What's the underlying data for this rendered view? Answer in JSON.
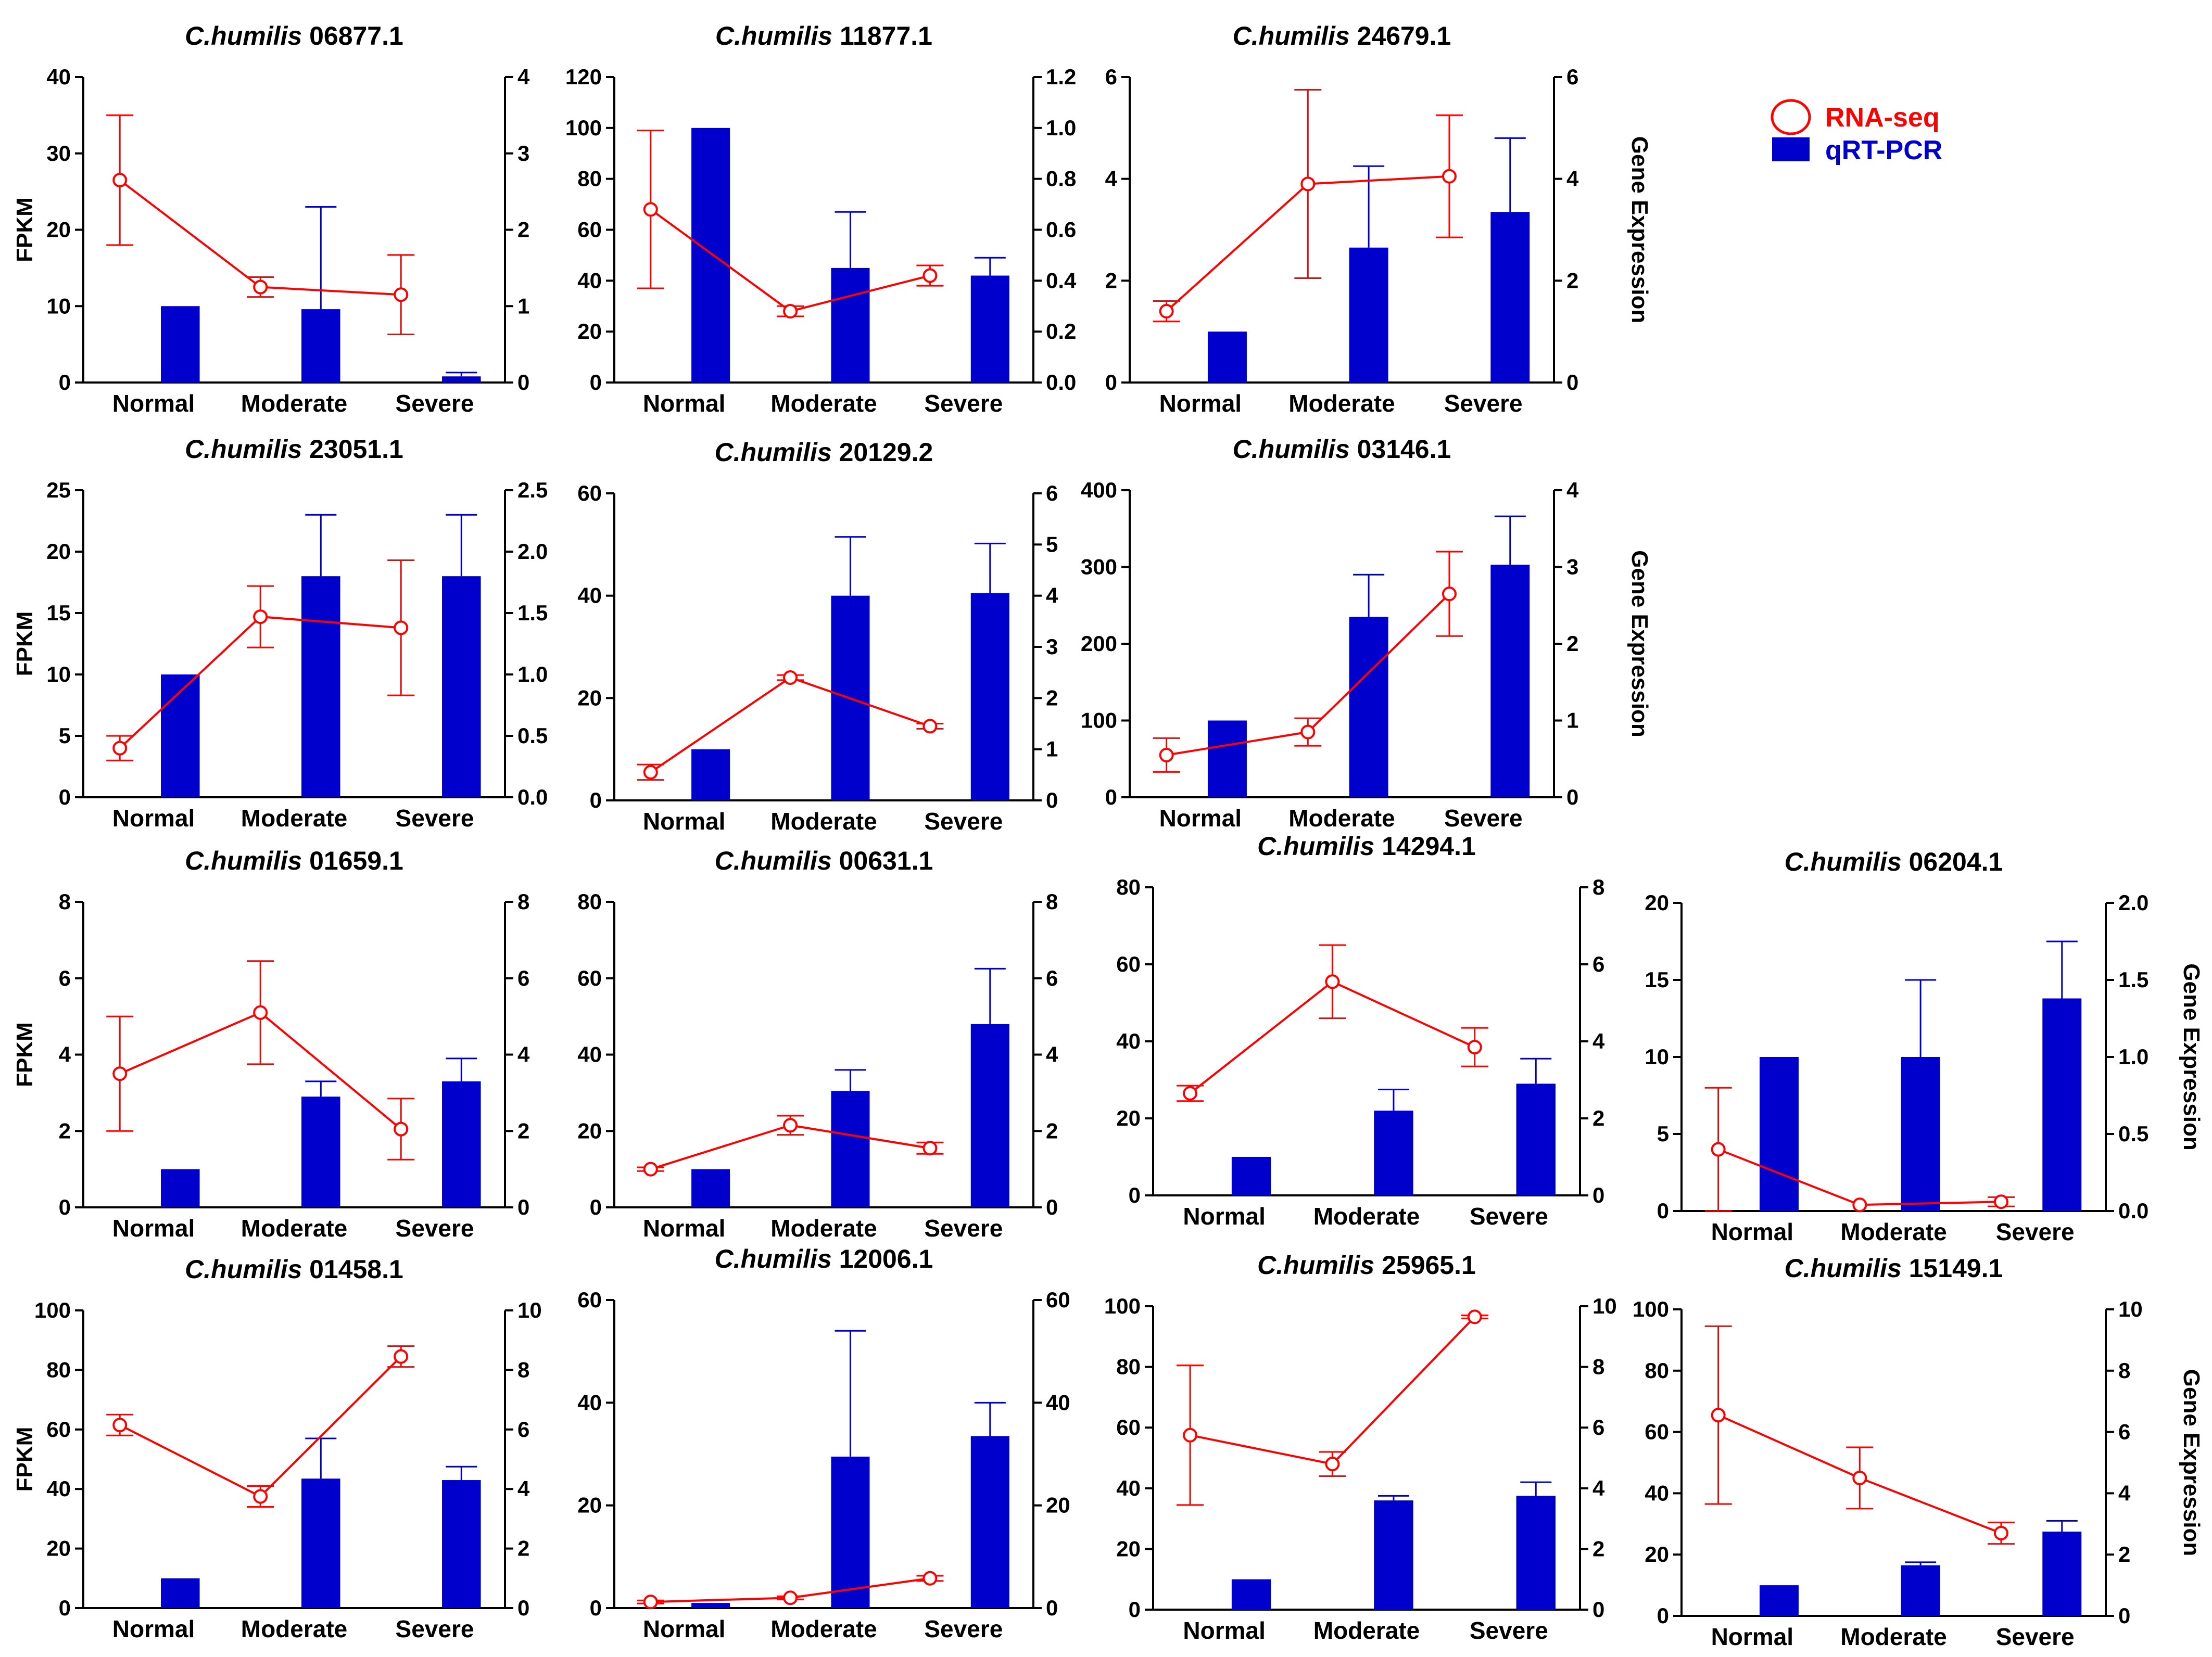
{
  "legend": {
    "rna_label": "RNA-seq",
    "qpcr_label": "qRT-PCR",
    "rna_color": "#ff0000",
    "qpcr_color": "#0000cc"
  },
  "axis_labels": {
    "left": "FPKM",
    "right": "Gene Expression"
  },
  "chart_data": [
    {
      "type": "bar",
      "title_prefix": "C.humilis",
      "title_id": "06877.1",
      "categories": [
        "Normal",
        "Moderate",
        "Severe"
      ],
      "series": [
        {
          "name": "RNA-seq",
          "kind": "line",
          "axis": "left",
          "values": [
            26.5,
            12.5,
            11.5
          ],
          "errors": [
            8.5,
            1.3,
            5.2
          ]
        },
        {
          "name": "qRT-PCR",
          "kind": "bar",
          "axis": "right",
          "values": [
            1.0,
            0.96,
            0.08
          ],
          "errors": [
            0,
            1.34,
            0.05
          ]
        }
      ],
      "ylim_left": [
        0,
        40
      ],
      "yticks_left": [
        "0",
        "10",
        "20",
        "30",
        "40"
      ],
      "ylim_right": [
        0,
        4
      ],
      "yticks_right": [
        "0",
        "1",
        "2",
        "3",
        "4"
      ]
    },
    {
      "type": "bar",
      "title_prefix": "C.humilis",
      "title_id": "11877.1",
      "categories": [
        "Normal",
        "Moderate",
        "Severe"
      ],
      "series": [
        {
          "name": "RNA-seq",
          "kind": "line",
          "axis": "left",
          "values": [
            68,
            28,
            42
          ],
          "errors": [
            31,
            2,
            4
          ]
        },
        {
          "name": "qRT-PCR",
          "kind": "bar",
          "axis": "right",
          "values": [
            1.0,
            0.45,
            0.42
          ],
          "errors": [
            0,
            0.22,
            0.07
          ]
        }
      ],
      "ylim_left": [
        0,
        120
      ],
      "yticks_left": [
        "0",
        "20",
        "40",
        "60",
        "80",
        "100",
        "120"
      ],
      "ylim_right": [
        0,
        1.2
      ],
      "yticks_right": [
        "0.0",
        "0.2",
        "0.4",
        "0.6",
        "0.8",
        "1.0",
        "1.2"
      ]
    },
    {
      "type": "bar",
      "title_prefix": "C.humilis",
      "title_id": "24679.1",
      "categories": [
        "Normal",
        "Moderate",
        "Severe"
      ],
      "series": [
        {
          "name": "RNA-seq",
          "kind": "line",
          "axis": "left",
          "values": [
            1.4,
            3.9,
            4.05
          ],
          "errors": [
            0.2,
            1.85,
            1.2
          ]
        },
        {
          "name": "qRT-PCR",
          "kind": "bar",
          "axis": "right",
          "values": [
            1.0,
            2.65,
            3.35
          ],
          "errors": [
            0,
            1.6,
            1.45
          ]
        }
      ],
      "ylim_left": [
        0,
        6
      ],
      "yticks_left": [
        "0",
        "2",
        "4",
        "6"
      ],
      "ylim_right": [
        0,
        6
      ],
      "yticks_right": [
        "0",
        "2",
        "4",
        "6"
      ]
    },
    {
      "type": "bar",
      "title_prefix": "C.humilis",
      "title_id": "23051.1",
      "categories": [
        "Normal",
        "Moderate",
        "Severe"
      ],
      "series": [
        {
          "name": "RNA-seq",
          "kind": "line",
          "axis": "left",
          "values": [
            4,
            14.7,
            13.8
          ],
          "errors": [
            1,
            2.5,
            5.5
          ]
        },
        {
          "name": "qRT-PCR",
          "kind": "bar",
          "axis": "right",
          "values": [
            1.0,
            1.8,
            1.8
          ],
          "errors": [
            0,
            0.5,
            0.5
          ]
        }
      ],
      "ylim_left": [
        0,
        25
      ],
      "yticks_left": [
        "0",
        "5",
        "10",
        "15",
        "20",
        "25"
      ],
      "ylim_right": [
        0,
        2.5
      ],
      "yticks_right": [
        "0.0",
        "0.5",
        "1.0",
        "1.5",
        "2.0",
        "2.5"
      ]
    },
    {
      "type": "bar",
      "title_prefix": "C.humilis",
      "title_id": "20129.2",
      "categories": [
        "Normal",
        "Moderate",
        "Severe"
      ],
      "series": [
        {
          "name": "RNA-seq",
          "kind": "line",
          "axis": "left",
          "values": [
            5.5,
            24,
            14.5
          ],
          "errors": [
            1.5,
            0.5,
            0.5
          ]
        },
        {
          "name": "qRT-PCR",
          "kind": "bar",
          "axis": "right",
          "values": [
            1.0,
            4.0,
            4.05
          ],
          "errors": [
            0,
            1.15,
            0.97
          ]
        }
      ],
      "ylim_left": [
        0,
        60
      ],
      "yticks_left": [
        "0",
        "20",
        "40",
        "60"
      ],
      "ylim_right": [
        0,
        6
      ],
      "yticks_right": [
        "0",
        "1",
        "2",
        "3",
        "4",
        "5",
        "6"
      ]
    },
    {
      "type": "bar",
      "title_prefix": "C.humilis",
      "title_id": "03146.1",
      "categories": [
        "Normal",
        "Moderate",
        "Severe"
      ],
      "series": [
        {
          "name": "RNA-seq",
          "kind": "line",
          "axis": "left",
          "values": [
            55,
            85,
            265
          ],
          "errors": [
            22,
            18,
            55
          ]
        },
        {
          "name": "qRT-PCR",
          "kind": "bar",
          "axis": "right",
          "values": [
            1.0,
            2.35,
            3.03
          ],
          "errors": [
            0,
            0.55,
            0.63
          ]
        }
      ],
      "ylim_left": [
        0,
        400
      ],
      "yticks_left": [
        "0",
        "100",
        "200",
        "300",
        "400"
      ],
      "ylim_right": [
        0,
        4
      ],
      "yticks_right": [
        "0",
        "1",
        "2",
        "3",
        "4"
      ]
    },
    {
      "type": "bar",
      "title_prefix": "C.humilis",
      "title_id": "01659.1",
      "categories": [
        "Normal",
        "Moderate",
        "Severe"
      ],
      "series": [
        {
          "name": "RNA-seq",
          "kind": "line",
          "axis": "left",
          "values": [
            3.5,
            5.1,
            2.05
          ],
          "errors": [
            1.5,
            1.35,
            0.8
          ]
        },
        {
          "name": "qRT-PCR",
          "kind": "bar",
          "axis": "right",
          "values": [
            1.0,
            2.9,
            3.3
          ],
          "errors": [
            0,
            0.4,
            0.6
          ]
        }
      ],
      "ylim_left": [
        0,
        8
      ],
      "yticks_left": [
        "0",
        "2",
        "4",
        "6",
        "8"
      ],
      "ylim_right": [
        0,
        8
      ],
      "yticks_right": [
        "0",
        "2",
        "4",
        "6",
        "8"
      ]
    },
    {
      "type": "bar",
      "title_prefix": "C.humilis",
      "title_id": "00631.1",
      "categories": [
        "Normal",
        "Moderate",
        "Severe"
      ],
      "series": [
        {
          "name": "RNA-seq",
          "kind": "line",
          "axis": "left",
          "values": [
            10,
            21.5,
            15.5
          ],
          "errors": [
            0.5,
            2.5,
            1.5
          ]
        },
        {
          "name": "qRT-PCR",
          "kind": "bar",
          "axis": "right",
          "values": [
            1.0,
            3.05,
            4.8
          ],
          "errors": [
            0,
            0.55,
            1.45
          ]
        }
      ],
      "ylim_left": [
        0,
        80
      ],
      "yticks_left": [
        "0",
        "20",
        "40",
        "60",
        "80"
      ],
      "ylim_right": [
        0,
        8
      ],
      "yticks_right": [
        "0",
        "2",
        "4",
        "6",
        "8"
      ]
    },
    {
      "type": "bar",
      "title_prefix": "C.humilis",
      "title_id": "14294.1",
      "categories": [
        "Normal",
        "Moderate",
        "Severe"
      ],
      "series": [
        {
          "name": "RNA-seq",
          "kind": "line",
          "axis": "left",
          "values": [
            26.5,
            55.5,
            38.5
          ],
          "errors": [
            2,
            9.5,
            5
          ]
        },
        {
          "name": "qRT-PCR",
          "kind": "bar",
          "axis": "right",
          "values": [
            1.0,
            2.2,
            2.9
          ],
          "errors": [
            0,
            0.55,
            0.65
          ]
        }
      ],
      "ylim_left": [
        0,
        80
      ],
      "yticks_left": [
        "0",
        "20",
        "40",
        "60",
        "80"
      ],
      "ylim_right": [
        0,
        8
      ],
      "yticks_right": [
        "0",
        "2",
        "4",
        "6",
        "8"
      ]
    },
    {
      "type": "bar",
      "title_prefix": "C.humilis",
      "title_id": "06204.1",
      "categories": [
        "Normal",
        "Moderate",
        "Severe"
      ],
      "series": [
        {
          "name": "RNA-seq",
          "kind": "line",
          "axis": "left",
          "values": [
            4,
            0.4,
            0.6
          ],
          "errors": [
            4,
            0,
            0.3
          ]
        },
        {
          "name": "qRT-PCR",
          "kind": "bar",
          "axis": "right",
          "values": [
            1.0,
            1.0,
            1.38
          ],
          "errors": [
            0,
            0.5,
            0.37
          ]
        }
      ],
      "ylim_left": [
        0,
        20
      ],
      "yticks_left": [
        "0",
        "5",
        "10",
        "15",
        "20"
      ],
      "ylim_right": [
        0,
        2
      ],
      "yticks_right": [
        "0.0",
        "0.5",
        "1.0",
        "1.5",
        "2.0"
      ]
    },
    {
      "type": "bar",
      "title_prefix": "C.humilis",
      "title_id": "01458.1",
      "categories": [
        "Normal",
        "Moderate",
        "Severe"
      ],
      "series": [
        {
          "name": "RNA-seq",
          "kind": "line",
          "axis": "left",
          "values": [
            61.5,
            37.5,
            84.5
          ],
          "errors": [
            3.5,
            3.5,
            3.5
          ]
        },
        {
          "name": "qRT-PCR",
          "kind": "bar",
          "axis": "right",
          "values": [
            1.0,
            4.35,
            4.3
          ],
          "errors": [
            0,
            1.35,
            0.45
          ]
        }
      ],
      "ylim_left": [
        0,
        100
      ],
      "yticks_left": [
        "0",
        "20",
        "40",
        "60",
        "80",
        "100"
      ],
      "ylim_right": [
        0,
        10
      ],
      "yticks_right": [
        "0",
        "2",
        "4",
        "6",
        "8",
        "10"
      ]
    },
    {
      "type": "bar",
      "title_prefix": "C.humilis",
      "title_id": "12006.1",
      "categories": [
        "Normal",
        "Moderate",
        "Severe"
      ],
      "series": [
        {
          "name": "RNA-seq",
          "kind": "line",
          "axis": "left",
          "values": [
            1.2,
            2,
            5.8
          ],
          "errors": [
            0.3,
            0.3,
            0.5
          ]
        },
        {
          "name": "qRT-PCR",
          "kind": "bar",
          "axis": "right",
          "values": [
            1.0,
            29.5,
            33.5
          ],
          "errors": [
            0,
            24.5,
            6.5
          ]
        }
      ],
      "ylim_left": [
        0,
        60
      ],
      "yticks_left": [
        "0",
        "20",
        "40",
        "60"
      ],
      "ylim_right": [
        0,
        60
      ],
      "yticks_right": [
        "0",
        "20",
        "40",
        "60"
      ]
    },
    {
      "type": "bar",
      "title_prefix": "C.humilis",
      "title_id": "25965.1",
      "categories": [
        "Normal",
        "Moderate",
        "Severe"
      ],
      "series": [
        {
          "name": "RNA-seq",
          "kind": "line",
          "axis": "left",
          "values": [
            57.5,
            48,
            96.5
          ],
          "errors": [
            23,
            4,
            0.5
          ]
        },
        {
          "name": "qRT-PCR",
          "kind": "bar",
          "axis": "right",
          "values": [
            1.0,
            3.6,
            3.75
          ],
          "errors": [
            0,
            0.15,
            0.45
          ]
        }
      ],
      "ylim_left": [
        0,
        100
      ],
      "yticks_left": [
        "0",
        "20",
        "40",
        "60",
        "80",
        "100"
      ],
      "ylim_right": [
        0,
        10
      ],
      "yticks_right": [
        "0",
        "2",
        "4",
        "6",
        "8",
        "10"
      ]
    },
    {
      "type": "bar",
      "title_prefix": "C.humilis",
      "title_id": "15149.1",
      "categories": [
        "Normal",
        "Moderate",
        "Severe"
      ],
      "series": [
        {
          "name": "RNA-seq",
          "kind": "line",
          "axis": "left",
          "values": [
            65.5,
            45,
            27
          ],
          "errors": [
            29,
            10,
            3.5
          ]
        },
        {
          "name": "qRT-PCR",
          "kind": "bar",
          "axis": "right",
          "values": [
            1.0,
            1.65,
            2.75
          ],
          "errors": [
            0,
            0.1,
            0.35
          ]
        }
      ],
      "ylim_left": [
        0,
        100
      ],
      "yticks_left": [
        "0",
        "20",
        "40",
        "60",
        "80",
        "100"
      ],
      "ylim_right": [
        0,
        10
      ],
      "yticks_right": [
        "0",
        "2",
        "4",
        "6",
        "8",
        "10"
      ]
    }
  ]
}
